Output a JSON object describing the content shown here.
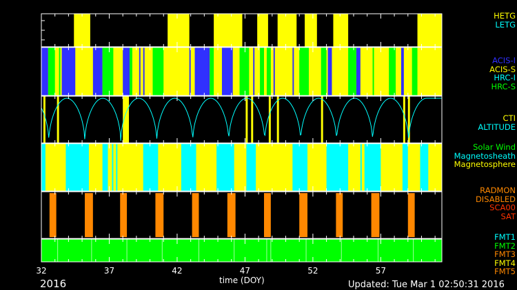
{
  "chart_data": {
    "type": "timeline",
    "xlabel": "time (DOY)",
    "xlim": [
      32,
      61.5
    ],
    "x_ticks": [
      32,
      37,
      42,
      47,
      52,
      57
    ],
    "x_minor_step": 1,
    "year": "2016",
    "updated": "Updated: Tue Mar  1 02:50:31 2016",
    "panels": [
      {
        "name": "grating",
        "background": "#000000",
        "legend": [
          {
            "label": "HETG",
            "color": "#ffff00"
          },
          {
            "label": "LETG",
            "color": "#00ffff"
          }
        ],
        "segments": [
          {
            "start": 34.4,
            "end": 35.6,
            "state": "HETG",
            "color": "#ffff00"
          },
          {
            "start": 41.3,
            "end": 42.9,
            "state": "HETG",
            "color": "#ffff00"
          },
          {
            "start": 44.7,
            "end": 46.8,
            "state": "HETG",
            "color": "#ffff00"
          },
          {
            "start": 47.9,
            "end": 48.7,
            "state": "HETG",
            "color": "#ffff00"
          },
          {
            "start": 49.4,
            "end": 50.8,
            "state": "HETG",
            "color": "#ffff00"
          },
          {
            "start": 51.4,
            "end": 52.3,
            "state": "HETG",
            "color": "#ffff00"
          },
          {
            "start": 53.5,
            "end": 54.6,
            "state": "HETG",
            "color": "#ffff00"
          },
          {
            "start": 59.7,
            "end": 61.8,
            "state": "HETG",
            "color": "#ffff00"
          }
        ]
      },
      {
        "name": "instrument",
        "background": "#ffff00",
        "legend": [
          {
            "label": "ACIS-I",
            "color": "#3030ff"
          },
          {
            "label": "ACIS-S",
            "color": "#ffff00"
          },
          {
            "label": "HRC-I",
            "color": "#00ffff"
          },
          {
            "label": "HRC-S",
            "color": "#00ff00"
          }
        ],
        "segments": [
          {
            "start": 32.0,
            "end": 32.5,
            "state": "ACIS-I",
            "color": "#3030ff"
          },
          {
            "start": 32.5,
            "end": 33.0,
            "state": "HRC-S",
            "color": "#00ff00"
          },
          {
            "start": 33.3,
            "end": 33.4,
            "state": "HRC-S",
            "color": "#00ff00"
          },
          {
            "start": 33.5,
            "end": 34.5,
            "state": "ACIS-I",
            "color": "#3030ff"
          },
          {
            "start": 35.8,
            "end": 36.5,
            "state": "ACIS-I",
            "color": "#3030ff"
          },
          {
            "start": 36.5,
            "end": 37.3,
            "state": "HRC-S",
            "color": "#00ff00"
          },
          {
            "start": 38.0,
            "end": 38.5,
            "state": "ACIS-I",
            "color": "#3030ff"
          },
          {
            "start": 38.5,
            "end": 38.7,
            "state": "HRC-S",
            "color": "#00ff00"
          },
          {
            "start": 39.2,
            "end": 39.3,
            "state": "ACIS-I",
            "color": "#3030ff"
          },
          {
            "start": 39.5,
            "end": 39.6,
            "state": "ACIS-I",
            "color": "#3030ff"
          },
          {
            "start": 40.2,
            "end": 41.0,
            "state": "HRC-S",
            "color": "#00ff00"
          },
          {
            "start": 42.9,
            "end": 43.0,
            "state": "ACIS-I",
            "color": "#3030ff"
          },
          {
            "start": 43.3,
            "end": 44.4,
            "state": "ACIS-I",
            "color": "#3030ff"
          },
          {
            "start": 44.4,
            "end": 44.7,
            "state": "HRC-S",
            "color": "#00ff00"
          },
          {
            "start": 45.3,
            "end": 46.1,
            "state": "ACIS-I",
            "color": "#3030ff"
          },
          {
            "start": 46.6,
            "end": 47.3,
            "state": "HRC-S",
            "color": "#00ff00"
          },
          {
            "start": 47.6,
            "end": 47.7,
            "state": "ACIS-I",
            "color": "#3030ff"
          },
          {
            "start": 48.1,
            "end": 48.4,
            "state": "HRC-S",
            "color": "#00ff00"
          },
          {
            "start": 48.6,
            "end": 48.9,
            "state": "HRC-S",
            "color": "#00ff00"
          },
          {
            "start": 49.1,
            "end": 49.2,
            "state": "ACIS-I",
            "color": "#3030ff"
          },
          {
            "start": 50.5,
            "end": 50.6,
            "state": "ACIS-I",
            "color": "#3030ff"
          },
          {
            "start": 51.0,
            "end": 51.7,
            "state": "HRC-S",
            "color": "#00ff00"
          },
          {
            "start": 52.6,
            "end": 53.0,
            "state": "HRC-S",
            "color": "#00ff00"
          },
          {
            "start": 53.1,
            "end": 53.4,
            "state": "ACIS-I",
            "color": "#3030ff"
          },
          {
            "start": 54.6,
            "end": 55.2,
            "state": "HRC-S",
            "color": "#00ff00"
          },
          {
            "start": 55.2,
            "end": 55.5,
            "state": "ACIS-I",
            "color": "#3030ff"
          },
          {
            "start": 56.4,
            "end": 56.5,
            "state": "HRC-S",
            "color": "#00ff00"
          },
          {
            "start": 57.6,
            "end": 58.1,
            "state": "HRC-S",
            "color": "#00ff00"
          },
          {
            "start": 58.5,
            "end": 58.7,
            "state": "ACIS-I",
            "color": "#3030ff"
          },
          {
            "start": 59.3,
            "end": 59.7,
            "state": "HRC-S",
            "color": "#00ff00"
          }
        ]
      },
      {
        "name": "cti",
        "background": "#000000",
        "legend": [
          {
            "label": "CTI",
            "color": "#ffff00"
          },
          {
            "label": "ALTITUDE",
            "color": "#00ffff"
          }
        ],
        "altitude_color": "#00ffff",
        "altitude_perigees": [
          32.55,
          35.2,
          37.85,
          40.5,
          43.15,
          45.8,
          48.45,
          51.1,
          53.75,
          56.4,
          59.05
        ],
        "segments": [
          {
            "start": 32.15,
            "end": 32.3,
            "state": "CTI",
            "color": "#ffff00"
          },
          {
            "start": 33.15,
            "end": 33.3,
            "state": "CTI",
            "color": "#ffff00"
          },
          {
            "start": 38.0,
            "end": 38.45,
            "state": "CTI",
            "color": "#ffff00"
          },
          {
            "start": 47.05,
            "end": 47.2,
            "state": "CTI",
            "color": "#ffff00"
          },
          {
            "start": 47.45,
            "end": 47.6,
            "state": "CTI",
            "color": "#ffff00"
          },
          {
            "start": 48.75,
            "end": 48.9,
            "state": "CTI",
            "color": "#ffff00"
          },
          {
            "start": 49.35,
            "end": 49.5,
            "state": "CTI",
            "color": "#ffff00"
          },
          {
            "start": 52.6,
            "end": 52.75,
            "state": "CTI",
            "color": "#ffff00"
          },
          {
            "start": 58.65,
            "end": 58.8,
            "state": "CTI",
            "color": "#ffff00"
          },
          {
            "start": 59.0,
            "end": 59.15,
            "state": "CTI",
            "color": "#ffff00"
          }
        ]
      },
      {
        "name": "environment",
        "background": "#ffff00",
        "legend": [
          {
            "label": "Solar Wind",
            "color": "#00ff00"
          },
          {
            "label": "Magnetosheath",
            "color": "#00ffff"
          },
          {
            "label": "Magnetosphere",
            "color": "#ffff00"
          }
        ],
        "segments": [
          {
            "start": 32.0,
            "end": 32.3,
            "state": "Magnetosheath",
            "color": "#00ffff"
          },
          {
            "start": 33.8,
            "end": 35.5,
            "state": "Magnetosheath",
            "color": "#00ffff"
          },
          {
            "start": 36.5,
            "end": 36.9,
            "state": "Magnetosheath",
            "color": "#00ffff"
          },
          {
            "start": 37.2,
            "end": 37.3,
            "state": "Magnetosheath",
            "color": "#00ffff"
          },
          {
            "start": 37.5,
            "end": 37.6,
            "state": "Magnetosheath",
            "color": "#00ffff"
          },
          {
            "start": 39.5,
            "end": 40.6,
            "state": "Magnetosheath",
            "color": "#00ffff"
          },
          {
            "start": 42.3,
            "end": 43.4,
            "state": "Magnetosheath",
            "color": "#00ffff"
          },
          {
            "start": 44.9,
            "end": 46.2,
            "state": "Magnetosheath",
            "color": "#00ffff"
          },
          {
            "start": 47.1,
            "end": 47.8,
            "state": "Magnetosheath",
            "color": "#00ffff"
          },
          {
            "start": 50.5,
            "end": 51.6,
            "state": "Magnetosheath",
            "color": "#00ffff"
          },
          {
            "start": 53.0,
            "end": 54.6,
            "state": "Magnetosheath",
            "color": "#00ffff"
          },
          {
            "start": 55.5,
            "end": 55.6,
            "state": "Magnetosheath",
            "color": "#00ffff"
          },
          {
            "start": 55.8,
            "end": 57.0,
            "state": "Magnetosheath",
            "color": "#00ffff"
          },
          {
            "start": 58.6,
            "end": 59.0,
            "state": "Magnetosheath",
            "color": "#00ffff"
          },
          {
            "start": 59.9,
            "end": 60.5,
            "state": "Magnetosheath",
            "color": "#00ffff"
          }
        ]
      },
      {
        "name": "radiation",
        "background": "#000000",
        "legend": [
          {
            "label": "RADMON",
            "color": "#ff8800"
          },
          {
            "label": "DISABLED",
            "color": "#ff8800"
          },
          {
            "label": "SCA00",
            "color": "#ff3300"
          },
          {
            "label": "SAT",
            "color": "#ff3300"
          }
        ],
        "segments": [
          {
            "start": 32.6,
            "end": 33.1,
            "state": "DISABLED",
            "color": "#ff8800"
          },
          {
            "start": 35.2,
            "end": 35.8,
            "state": "DISABLED",
            "color": "#ff8800"
          },
          {
            "start": 37.8,
            "end": 38.3,
            "state": "DISABLED",
            "color": "#ff8800"
          },
          {
            "start": 40.4,
            "end": 41.0,
            "state": "DISABLED",
            "color": "#ff8800"
          },
          {
            "start": 43.1,
            "end": 43.6,
            "state": "DISABLED",
            "color": "#ff8800"
          },
          {
            "start": 45.7,
            "end": 46.3,
            "state": "DISABLED",
            "color": "#ff8800"
          },
          {
            "start": 48.4,
            "end": 48.9,
            "state": "DISABLED",
            "color": "#ff8800"
          },
          {
            "start": 51.0,
            "end": 51.6,
            "state": "DISABLED",
            "color": "#ff8800"
          },
          {
            "start": 53.7,
            "end": 54.2,
            "state": "DISABLED",
            "color": "#ff8800"
          },
          {
            "start": 56.3,
            "end": 56.9,
            "state": "DISABLED",
            "color": "#ff8800"
          },
          {
            "start": 59.0,
            "end": 59.5,
            "state": "DISABLED",
            "color": "#ff8800"
          }
        ]
      },
      {
        "name": "format",
        "background": "#00ff00",
        "legend": [
          {
            "label": "FMT1",
            "color": "#00ffff"
          },
          {
            "label": "FMT2",
            "color": "#00ff00"
          },
          {
            "label": "FMT3",
            "color": "#ff8800"
          },
          {
            "label": "FMT4",
            "color": "#ffff00"
          },
          {
            "label": "FMT5",
            "color": "#ff8800"
          }
        ],
        "markers": [
          33.2,
          35.7,
          38.3,
          40.9,
          43.6,
          46.2,
          48.6,
          48.9,
          51.5,
          54.1,
          56.8,
          59.4
        ]
      }
    ]
  }
}
